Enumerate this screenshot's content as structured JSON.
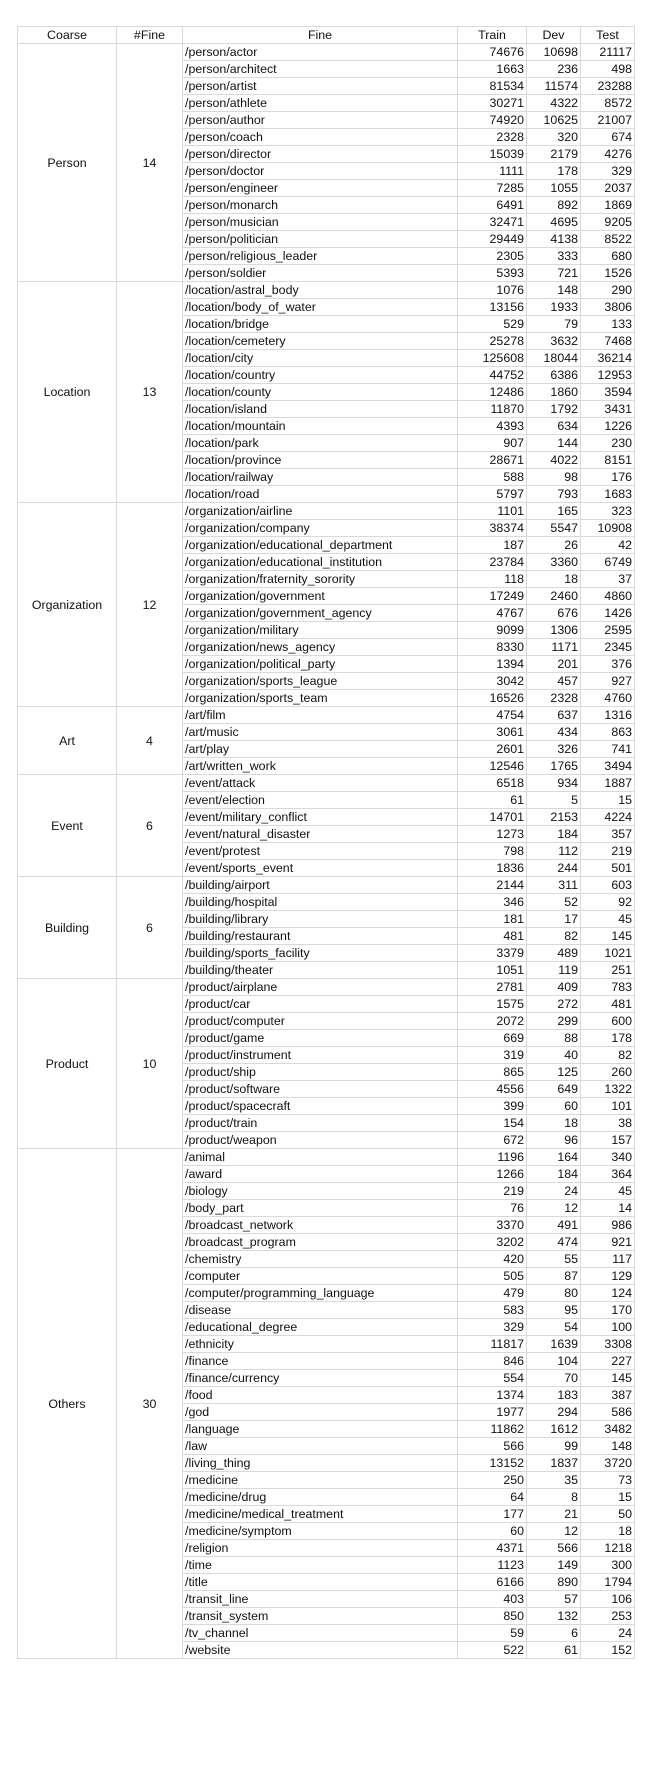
{
  "headers": [
    "Coarse",
    "#Fine",
    "Fine",
    "Train",
    "Dev",
    "Test"
  ],
  "groups": [
    {
      "coarse": "Person",
      "nfine": "14",
      "rows": [
        [
          "/person/actor",
          "74676",
          "10698",
          "21117"
        ],
        [
          "/person/architect",
          "1663",
          "236",
          "498"
        ],
        [
          "/person/artist",
          "81534",
          "11574",
          "23288"
        ],
        [
          "/person/athlete",
          "30271",
          "4322",
          "8572"
        ],
        [
          "/person/author",
          "74920",
          "10625",
          "21007"
        ],
        [
          "/person/coach",
          "2328",
          "320",
          "674"
        ],
        [
          "/person/director",
          "15039",
          "2179",
          "4276"
        ],
        [
          "/person/doctor",
          "1111",
          "178",
          "329"
        ],
        [
          "/person/engineer",
          "7285",
          "1055",
          "2037"
        ],
        [
          "/person/monarch",
          "6491",
          "892",
          "1869"
        ],
        [
          "/person/musician",
          "32471",
          "4695",
          "9205"
        ],
        [
          "/person/politician",
          "29449",
          "4138",
          "8522"
        ],
        [
          "/person/religious_leader",
          "2305",
          "333",
          "680"
        ],
        [
          "/person/soldier",
          "5393",
          "721",
          "1526"
        ]
      ]
    },
    {
      "coarse": "Location",
      "nfine": "13",
      "rows": [
        [
          "/location/astral_body",
          "1076",
          "148",
          "290"
        ],
        [
          "/location/body_of_water",
          "13156",
          "1933",
          "3806"
        ],
        [
          "/location/bridge",
          "529",
          "79",
          "133"
        ],
        [
          "/location/cemetery",
          "25278",
          "3632",
          "7468"
        ],
        [
          "/location/city",
          "125608",
          "18044",
          "36214"
        ],
        [
          "/location/country",
          "44752",
          "6386",
          "12953"
        ],
        [
          "/location/county",
          "12486",
          "1860",
          "3594"
        ],
        [
          "/location/island",
          "11870",
          "1792",
          "3431"
        ],
        [
          "/location/mountain",
          "4393",
          "634",
          "1226"
        ],
        [
          "/location/park",
          "907",
          "144",
          "230"
        ],
        [
          "/location/province",
          "28671",
          "4022",
          "8151"
        ],
        [
          "/location/railway",
          "588",
          "98",
          "176"
        ],
        [
          "/location/road",
          "5797",
          "793",
          "1683"
        ]
      ]
    },
    {
      "coarse": "Organization",
      "nfine": "12",
      "rows": [
        [
          "/organization/airline",
          "1101",
          "165",
          "323"
        ],
        [
          "/organization/company",
          "38374",
          "5547",
          "10908"
        ],
        [
          "/organization/educational_department",
          "187",
          "26",
          "42"
        ],
        [
          "/organization/educational_institution",
          "23784",
          "3360",
          "6749"
        ],
        [
          "/organization/fraternity_sorority",
          "118",
          "18",
          "37"
        ],
        [
          "/organization/government",
          "17249",
          "2460",
          "4860"
        ],
        [
          "/organization/government_agency",
          "4767",
          "676",
          "1426"
        ],
        [
          "/organization/military",
          "9099",
          "1306",
          "2595"
        ],
        [
          "/organization/news_agency",
          "8330",
          "1171",
          "2345"
        ],
        [
          "/organization/political_party",
          "1394",
          "201",
          "376"
        ],
        [
          "/organization/sports_league",
          "3042",
          "457",
          "927"
        ],
        [
          "/organization/sports_team",
          "16526",
          "2328",
          "4760"
        ]
      ]
    },
    {
      "coarse": "Art",
      "nfine": "4",
      "rows": [
        [
          "/art/film",
          "4754",
          "637",
          "1316"
        ],
        [
          "/art/music",
          "3061",
          "434",
          "863"
        ],
        [
          "/art/play",
          "2601",
          "326",
          "741"
        ],
        [
          "/art/written_work",
          "12546",
          "1765",
          "3494"
        ]
      ]
    },
    {
      "coarse": "Event",
      "nfine": "6",
      "rows": [
        [
          "/event/attack",
          "6518",
          "934",
          "1887"
        ],
        [
          "/event/election",
          "61",
          "5",
          "15"
        ],
        [
          "/event/military_conflict",
          "14701",
          "2153",
          "4224"
        ],
        [
          "/event/natural_disaster",
          "1273",
          "184",
          "357"
        ],
        [
          "/event/protest",
          "798",
          "112",
          "219"
        ],
        [
          "/event/sports_event",
          "1836",
          "244",
          "501"
        ]
      ]
    },
    {
      "coarse": "Building",
      "nfine": "6",
      "rows": [
        [
          "/building/airport",
          "2144",
          "311",
          "603"
        ],
        [
          "/building/hospital",
          "346",
          "52",
          "92"
        ],
        [
          "/building/library",
          "181",
          "17",
          "45"
        ],
        [
          "/building/restaurant",
          "481",
          "82",
          "145"
        ],
        [
          "/building/sports_facility",
          "3379",
          "489",
          "1021"
        ],
        [
          "/building/theater",
          "1051",
          "119",
          "251"
        ]
      ]
    },
    {
      "coarse": "Product",
      "nfine": "10",
      "rows": [
        [
          "/product/airplane",
          "2781",
          "409",
          "783"
        ],
        [
          "/product/car",
          "1575",
          "272",
          "481"
        ],
        [
          "/product/computer",
          "2072",
          "299",
          "600"
        ],
        [
          "/product/game",
          "669",
          "88",
          "178"
        ],
        [
          "/product/instrument",
          "319",
          "40",
          "82"
        ],
        [
          "/product/ship",
          "865",
          "125",
          "260"
        ],
        [
          "/product/software",
          "4556",
          "649",
          "1322"
        ],
        [
          "/product/spacecraft",
          "399",
          "60",
          "101"
        ],
        [
          "/product/train",
          "154",
          "18",
          "38"
        ],
        [
          "/product/weapon",
          "672",
          "96",
          "157"
        ]
      ]
    },
    {
      "coarse": "Others",
      "nfine": "30",
      "rows": [
        [
          "/animal",
          "1196",
          "164",
          "340"
        ],
        [
          "/award",
          "1266",
          "184",
          "364"
        ],
        [
          "/biology",
          "219",
          "24",
          "45"
        ],
        [
          "/body_part",
          "76",
          "12",
          "14"
        ],
        [
          "/broadcast_network",
          "3370",
          "491",
          "986"
        ],
        [
          "/broadcast_program",
          "3202",
          "474",
          "921"
        ],
        [
          "/chemistry",
          "420",
          "55",
          "117"
        ],
        [
          "/computer",
          "505",
          "87",
          "129"
        ],
        [
          "/computer/programming_language",
          "479",
          "80",
          "124"
        ],
        [
          "/disease",
          "583",
          "95",
          "170"
        ],
        [
          "/educational_degree",
          "329",
          "54",
          "100"
        ],
        [
          "/ethnicity",
          "11817",
          "1639",
          "3308"
        ],
        [
          "/finance",
          "846",
          "104",
          "227"
        ],
        [
          "/finance/currency",
          "554",
          "70",
          "145"
        ],
        [
          "/food",
          "1374",
          "183",
          "387"
        ],
        [
          "/god",
          "1977",
          "294",
          "586"
        ],
        [
          "/language",
          "11862",
          "1612",
          "3482"
        ],
        [
          "/law",
          "566",
          "99",
          "148"
        ],
        [
          "/living_thing",
          "13152",
          "1837",
          "3720"
        ],
        [
          "/medicine",
          "250",
          "35",
          "73"
        ],
        [
          "/medicine/drug",
          "64",
          "8",
          "15"
        ],
        [
          "/medicine/medical_treatment",
          "177",
          "21",
          "50"
        ],
        [
          "/medicine/symptom",
          "60",
          "12",
          "18"
        ],
        [
          "/religion",
          "4371",
          "566",
          "1218"
        ],
        [
          "/time",
          "1123",
          "149",
          "300"
        ],
        [
          "/title",
          "6166",
          "890",
          "1794"
        ],
        [
          "/transit_line",
          "403",
          "57",
          "106"
        ],
        [
          "/transit_system",
          "850",
          "132",
          "253"
        ],
        [
          "/tv_channel",
          "59",
          "6",
          "24"
        ],
        [
          "/website",
          "522",
          "61",
          "152"
        ]
      ]
    }
  ]
}
